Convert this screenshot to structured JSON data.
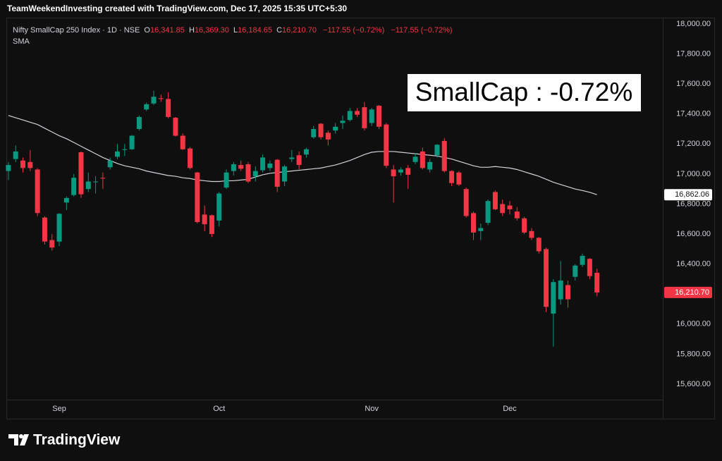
{
  "chart_data": {
    "type": "candlestick",
    "header": "TeamWeekendInvesting created with TradingView.com, Dec 17, 2025 15:35 UTC+5:30",
    "annotation": "SmallCap : -0.72%",
    "watermark": "TradingView",
    "categories": [
      null,
      null,
      null,
      null,
      null,
      null,
      null,
      "Sep",
      null,
      null,
      null,
      null,
      null,
      null,
      null,
      null,
      null,
      null,
      null,
      null,
      null,
      null,
      null,
      null,
      null,
      null,
      null,
      null,
      null,
      "Oct",
      null,
      null,
      null,
      null,
      null,
      null,
      null,
      null,
      null,
      null,
      null,
      null,
      null,
      null,
      null,
      null,
      null,
      null,
      null,
      null,
      "Nov",
      null,
      null,
      null,
      null,
      null,
      null,
      null,
      null,
      null,
      null,
      null,
      null,
      null,
      null,
      null,
      null,
      null,
      null,
      "Dec",
      null,
      null,
      null,
      null,
      null,
      null,
      null,
      null,
      null,
      null,
      null,
      null
    ],
    "series": [
      {
        "name": "Nifty SmallCap 250 Index · 1D · NSE",
        "up_color": "#089981",
        "down_color": "#f23645",
        "open": [
          17020,
          17100,
          17090,
          17080,
          17030,
          16710,
          16560,
          16550,
          16810,
          16860,
          17145,
          16900,
          16945,
          16975,
          17045,
          17115,
          17160,
          17165,
          17300,
          17430,
          17470,
          17505,
          17500,
          17375,
          17255,
          17170,
          17010,
          16730,
          16725,
          16690,
          16910,
          17020,
          17060,
          17065,
          16985,
          17025,
          17040,
          17095,
          16950,
          17100,
          17125,
          17130,
          17245,
          17335,
          17275,
          17290,
          17340,
          17360,
          17420,
          17445,
          17340,
          17455,
          17330,
          17030,
          17010,
          17040,
          17080,
          17150,
          17030,
          17125,
          17220,
          17020,
          17010,
          16900,
          16740,
          16620,
          16675,
          16880,
          16800,
          16790,
          16750,
          16705,
          16620,
          16575,
          16500,
          16070,
          16165,
          16260,
          16315,
          16395,
          16435,
          16341.85
        ],
        "high": [
          17080,
          17190,
          17110,
          17160,
          17040,
          16720,
          16600,
          16740,
          16850,
          17000,
          17150,
          17010,
          16985,
          17010,
          17110,
          17200,
          17200,
          17260,
          17390,
          17475,
          17555,
          17530,
          17545,
          17380,
          17270,
          17180,
          17015,
          16790,
          16730,
          16880,
          17030,
          17080,
          17090,
          17080,
          17050,
          17130,
          17090,
          17100,
          17060,
          17160,
          17150,
          17175,
          17320,
          17340,
          17290,
          17340,
          17390,
          17440,
          17440,
          17480,
          17440,
          17460,
          17340,
          17060,
          17045,
          17060,
          17140,
          17175,
          17100,
          17200,
          17240,
          17025,
          17020,
          16910,
          16750,
          16670,
          16830,
          16890,
          16830,
          16820,
          16780,
          16715,
          16640,
          16580,
          16510,
          16300,
          16420,
          16290,
          16400,
          16470,
          16440,
          16369.3
        ],
        "low": [
          16960,
          17080,
          17010,
          17020,
          16720,
          16530,
          16490,
          16520,
          16760,
          16850,
          16840,
          16880,
          16870,
          16900,
          17030,
          17100,
          17120,
          17160,
          17290,
          17420,
          17460,
          17480,
          17370,
          17250,
          17160,
          17030,
          16670,
          16620,
          16580,
          16650,
          16900,
          16990,
          17020,
          16940,
          16950,
          17010,
          17020,
          16880,
          16920,
          17080,
          17030,
          17110,
          17235,
          17230,
          17190,
          17270,
          17300,
          17350,
          17380,
          17290,
          17320,
          17300,
          17040,
          16810,
          16990,
          16900,
          17065,
          17030,
          17010,
          17110,
          17010,
          16920,
          16920,
          16710,
          16560,
          16560,
          16660,
          16760,
          16720,
          16730,
          16690,
          16600,
          16560,
          16470,
          16080,
          15850,
          16130,
          16110,
          16290,
          16380,
          16300,
          16184.65
        ],
        "close": [
          17060,
          17150,
          17040,
          17040,
          16740,
          16550,
          16510,
          16735,
          16840,
          16975,
          16865,
          16950,
          16950,
          16970,
          17090,
          17150,
          17165,
          17255,
          17380,
          17465,
          17515,
          17500,
          17380,
          17255,
          17165,
          17040,
          16680,
          16665,
          16600,
          16870,
          17010,
          17065,
          17035,
          16950,
          17020,
          17110,
          17070,
          16915,
          17050,
          17110,
          17060,
          17165,
          17300,
          17245,
          17230,
          17315,
          17355,
          17420,
          17395,
          17305,
          17430,
          17315,
          17055,
          16985,
          17030,
          16995,
          17115,
          17040,
          17080,
          17195,
          17020,
          16940,
          16930,
          16720,
          16610,
          16640,
          16820,
          16765,
          16740,
          16765,
          16705,
          16610,
          16575,
          16485,
          16115,
          16280,
          16290,
          16165,
          16390,
          16455,
          16320,
          16210.7
        ],
        "legend_prefixes": [
          "O",
          "H",
          "L",
          "C"
        ],
        "legend_labels": [
          "16,341.85",
          "16,369.30",
          "16,184.65",
          "16,210.70"
        ],
        "change_label": "−117.55 (−0.72%)",
        "last_label": "16,210.70"
      },
      {
        "name": "SMA",
        "color": "#d1d4dc",
        "values": [
          17390,
          17375,
          17360,
          17345,
          17330,
          17305,
          17280,
          17255,
          17235,
          17210,
          17185,
          17160,
          17135,
          17110,
          17090,
          17070,
          17055,
          17045,
          17035,
          17020,
          17010,
          17000,
          16990,
          16985,
          16975,
          16970,
          16960,
          16955,
          16950,
          16950,
          16955,
          16955,
          16960,
          16965,
          16980,
          16995,
          17005,
          17010,
          17015,
          17020,
          17025,
          17030,
          17035,
          17040,
          17050,
          17060,
          17075,
          17090,
          17110,
          17130,
          17145,
          17150,
          17150,
          17150,
          17145,
          17140,
          17135,
          17130,
          17125,
          17120,
          17110,
          17100,
          17085,
          17070,
          17055,
          17045,
          17045,
          17050,
          17045,
          17040,
          17030,
          17015,
          17000,
          16985,
          16965,
          16945,
          16930,
          16915,
          16900,
          16890,
          16878,
          16862.06
        ],
        "last_label": "16,862.06"
      }
    ],
    "ylim": [
      15365,
      18042
    ],
    "yticks": [
      {
        "value": 15600,
        "label": "15,600.00"
      },
      {
        "value": 15800,
        "label": "15,800.00"
      },
      {
        "value": 16000,
        "label": "16,000.00"
      },
      {
        "value": 16400,
        "label": "16,400.00"
      },
      {
        "value": 16600,
        "label": "16,600.00"
      },
      {
        "value": 16800,
        "label": "16,800.00"
      },
      {
        "value": 17000,
        "label": "17,000.00"
      },
      {
        "value": 17200,
        "label": "17,200.00"
      },
      {
        "value": 17400,
        "label": "17,400.00"
      },
      {
        "value": 17600,
        "label": "17,600.00"
      },
      {
        "value": 17800,
        "label": "17,800.00"
      },
      {
        "value": 18000,
        "label": "18,000.00"
      }
    ],
    "grid": false
  }
}
